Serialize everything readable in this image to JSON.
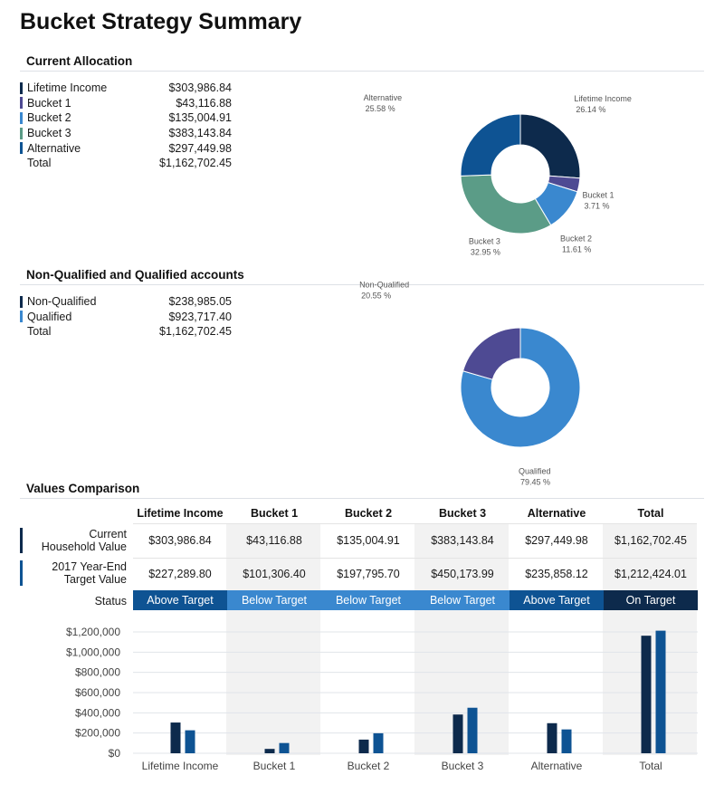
{
  "page_title": "Bucket Strategy Summary",
  "current_allocation": {
    "heading": "Current Allocation",
    "rows": [
      {
        "label": "Lifetime Income",
        "value": "$303,986.84",
        "color": "#0d2a4c"
      },
      {
        "label": "Bucket 1",
        "value": "$43,116.88",
        "color": "#4e4a93"
      },
      {
        "label": "Bucket 2",
        "value": "$135,004.91",
        "color": "#3a88cf"
      },
      {
        "label": "Bucket 3",
        "value": "$383,143.84",
        "color": "#5b9c87"
      },
      {
        "label": "Alternative",
        "value": "$297,449.98",
        "color": "#0e5393"
      }
    ],
    "total": {
      "label": "Total",
      "value": "$1,162,702.45"
    }
  },
  "accounts": {
    "heading": "Non-Qualified and Qualified accounts",
    "rows": [
      {
        "label": "Non-Qualified",
        "value": "$238,985.05",
        "color": "#0d2a4c"
      },
      {
        "label": "Qualified",
        "value": "$923,717.40",
        "color": "#3a88cf"
      }
    ],
    "total": {
      "label": "Total",
      "value": "$1,162,702.45"
    }
  },
  "comparison": {
    "heading": "Values Comparison",
    "columns": [
      "Lifetime Income",
      "Bucket 1",
      "Bucket 2",
      "Bucket 3",
      "Alternative",
      "Total"
    ],
    "rows": [
      {
        "label_line1": "Current",
        "label_line2": "Household Value",
        "marker_color": "#0d2a4c",
        "values": [
          "$303,986.84",
          "$43,116.88",
          "$135,004.91",
          "$383,143.84",
          "$297,449.98",
          "$1,162,702.45"
        ]
      },
      {
        "label_line1": "2017 Year-End",
        "label_line2": "Target Value",
        "marker_color": "#0e5393",
        "values": [
          "$227,289.80",
          "$101,306.40",
          "$197,795.70",
          "$450,173.99",
          "$235,858.12",
          "$1,212,424.01"
        ]
      }
    ],
    "status_label": "Status",
    "statuses": [
      {
        "text": "Above Target",
        "color": "#0e5393"
      },
      {
        "text": "Below Target",
        "color": "#3a88cf"
      },
      {
        "text": "Below Target",
        "color": "#3a88cf"
      },
      {
        "text": "Below Target",
        "color": "#3a88cf"
      },
      {
        "text": "Above Target",
        "color": "#0e5393"
      },
      {
        "text": "On Target",
        "color": "#0d2a4c"
      }
    ],
    "shade_color": "#f2f2f2"
  },
  "chart_data": [
    {
      "type": "pie",
      "variant": "donut",
      "labels": [
        "Lifetime Income",
        "Bucket 1",
        "Bucket 2",
        "Bucket 3",
        "Alternative"
      ],
      "values": [
        26.14,
        3.71,
        11.61,
        32.95,
        25.58
      ],
      "value_labels": [
        "26.14 %",
        "3.71 %",
        "11.61 %",
        "32.95 %",
        "25.58 %"
      ],
      "colors": [
        "#0d2a4c",
        "#4e4a93",
        "#3a88cf",
        "#5b9c87",
        "#0e5393"
      ]
    },
    {
      "type": "pie",
      "variant": "donut",
      "labels": [
        "Qualified",
        "Non-Qualified"
      ],
      "values": [
        79.45,
        20.55
      ],
      "value_labels": [
        "79.45 %",
        "20.55 %"
      ],
      "colors": [
        "#3a88cf",
        "#4e4a93"
      ]
    },
    {
      "type": "bar",
      "categories": [
        "Lifetime Income",
        "Bucket 1",
        "Bucket 2",
        "Bucket 3",
        "Alternative",
        "Total"
      ],
      "series": [
        {
          "values": [
            303986.84,
            43116.88,
            135004.91,
            383143.84,
            297449.98,
            1162702.45
          ],
          "color": "#0d2a4c"
        },
        {
          "values": [
            227289.8,
            101306.4,
            197795.7,
            450173.99,
            235858.12,
            1212424.01
          ],
          "color": "#0e5393"
        }
      ],
      "ylim": [
        0,
        1200000
      ],
      "yticks": [
        0,
        200000,
        400000,
        600000,
        800000,
        1000000,
        1200000
      ],
      "ytick_labels": [
        "$0",
        "$200,000",
        "$400,000",
        "$600,000",
        "$800,000",
        "$1,000,000",
        "$1,200,000"
      ],
      "grid": true,
      "legend": "none"
    }
  ]
}
